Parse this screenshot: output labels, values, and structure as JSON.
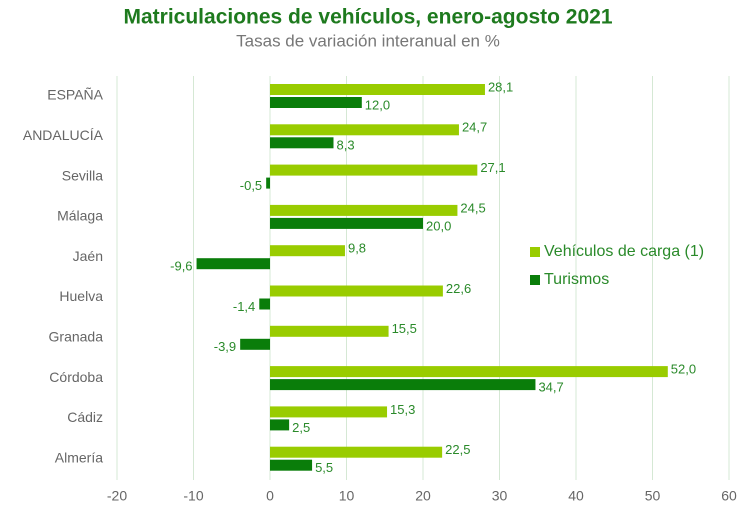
{
  "chart_data": {
    "type": "barh",
    "title": "Matriculaciones de vehículos, enero-agosto 2021",
    "subtitle": "Tasas de variación interanual en %",
    "categories": [
      "ESPAÑA",
      "ANDALUCÍA",
      "Sevilla",
      "Málaga",
      "Jaén",
      "Huelva",
      "Granada",
      "Córdoba",
      "Cádiz",
      "Almería"
    ],
    "series": [
      {
        "name": "Vehículos de carga (1)",
        "color": "#99cc00",
        "values": [
          28.1,
          24.7,
          27.1,
          24.5,
          9.8,
          22.6,
          15.5,
          52.0,
          15.3,
          22.5
        ],
        "value_labels": [
          "28,1",
          "24,7",
          "27,1",
          "24,5",
          "9,8",
          "22,6",
          "15,5",
          "52,0",
          "15,3",
          "22,5"
        ]
      },
      {
        "name": "Turismos",
        "color": "#0a7d0a",
        "values": [
          12.0,
          8.3,
          -0.5,
          20.0,
          -9.6,
          -1.4,
          -3.9,
          34.7,
          2.5,
          5.5
        ],
        "value_labels": [
          "12,0",
          "8,3",
          "-0,5",
          "20,0",
          "-9,6",
          "-1,4",
          "-3,9",
          "34,7",
          "2,5",
          "5,5"
        ]
      }
    ],
    "xlim": [
      -20,
      60
    ],
    "xticks": [
      -20,
      -10,
      0,
      10,
      20,
      30,
      40,
      50,
      60
    ],
    "grid": true,
    "legend": "right"
  }
}
